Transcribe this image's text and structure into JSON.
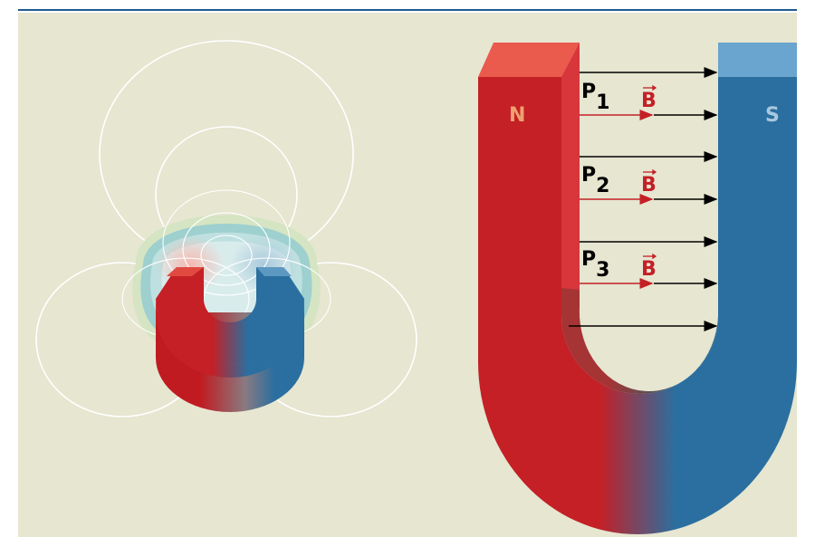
{
  "magnet": {
    "north_label": "N",
    "south_label": "S"
  },
  "points": [
    {
      "label": "P",
      "subscript": "1",
      "field": "B"
    },
    {
      "label": "P",
      "subscript": "2",
      "field": "B"
    },
    {
      "label": "P",
      "subscript": "3",
      "field": "B"
    }
  ]
}
